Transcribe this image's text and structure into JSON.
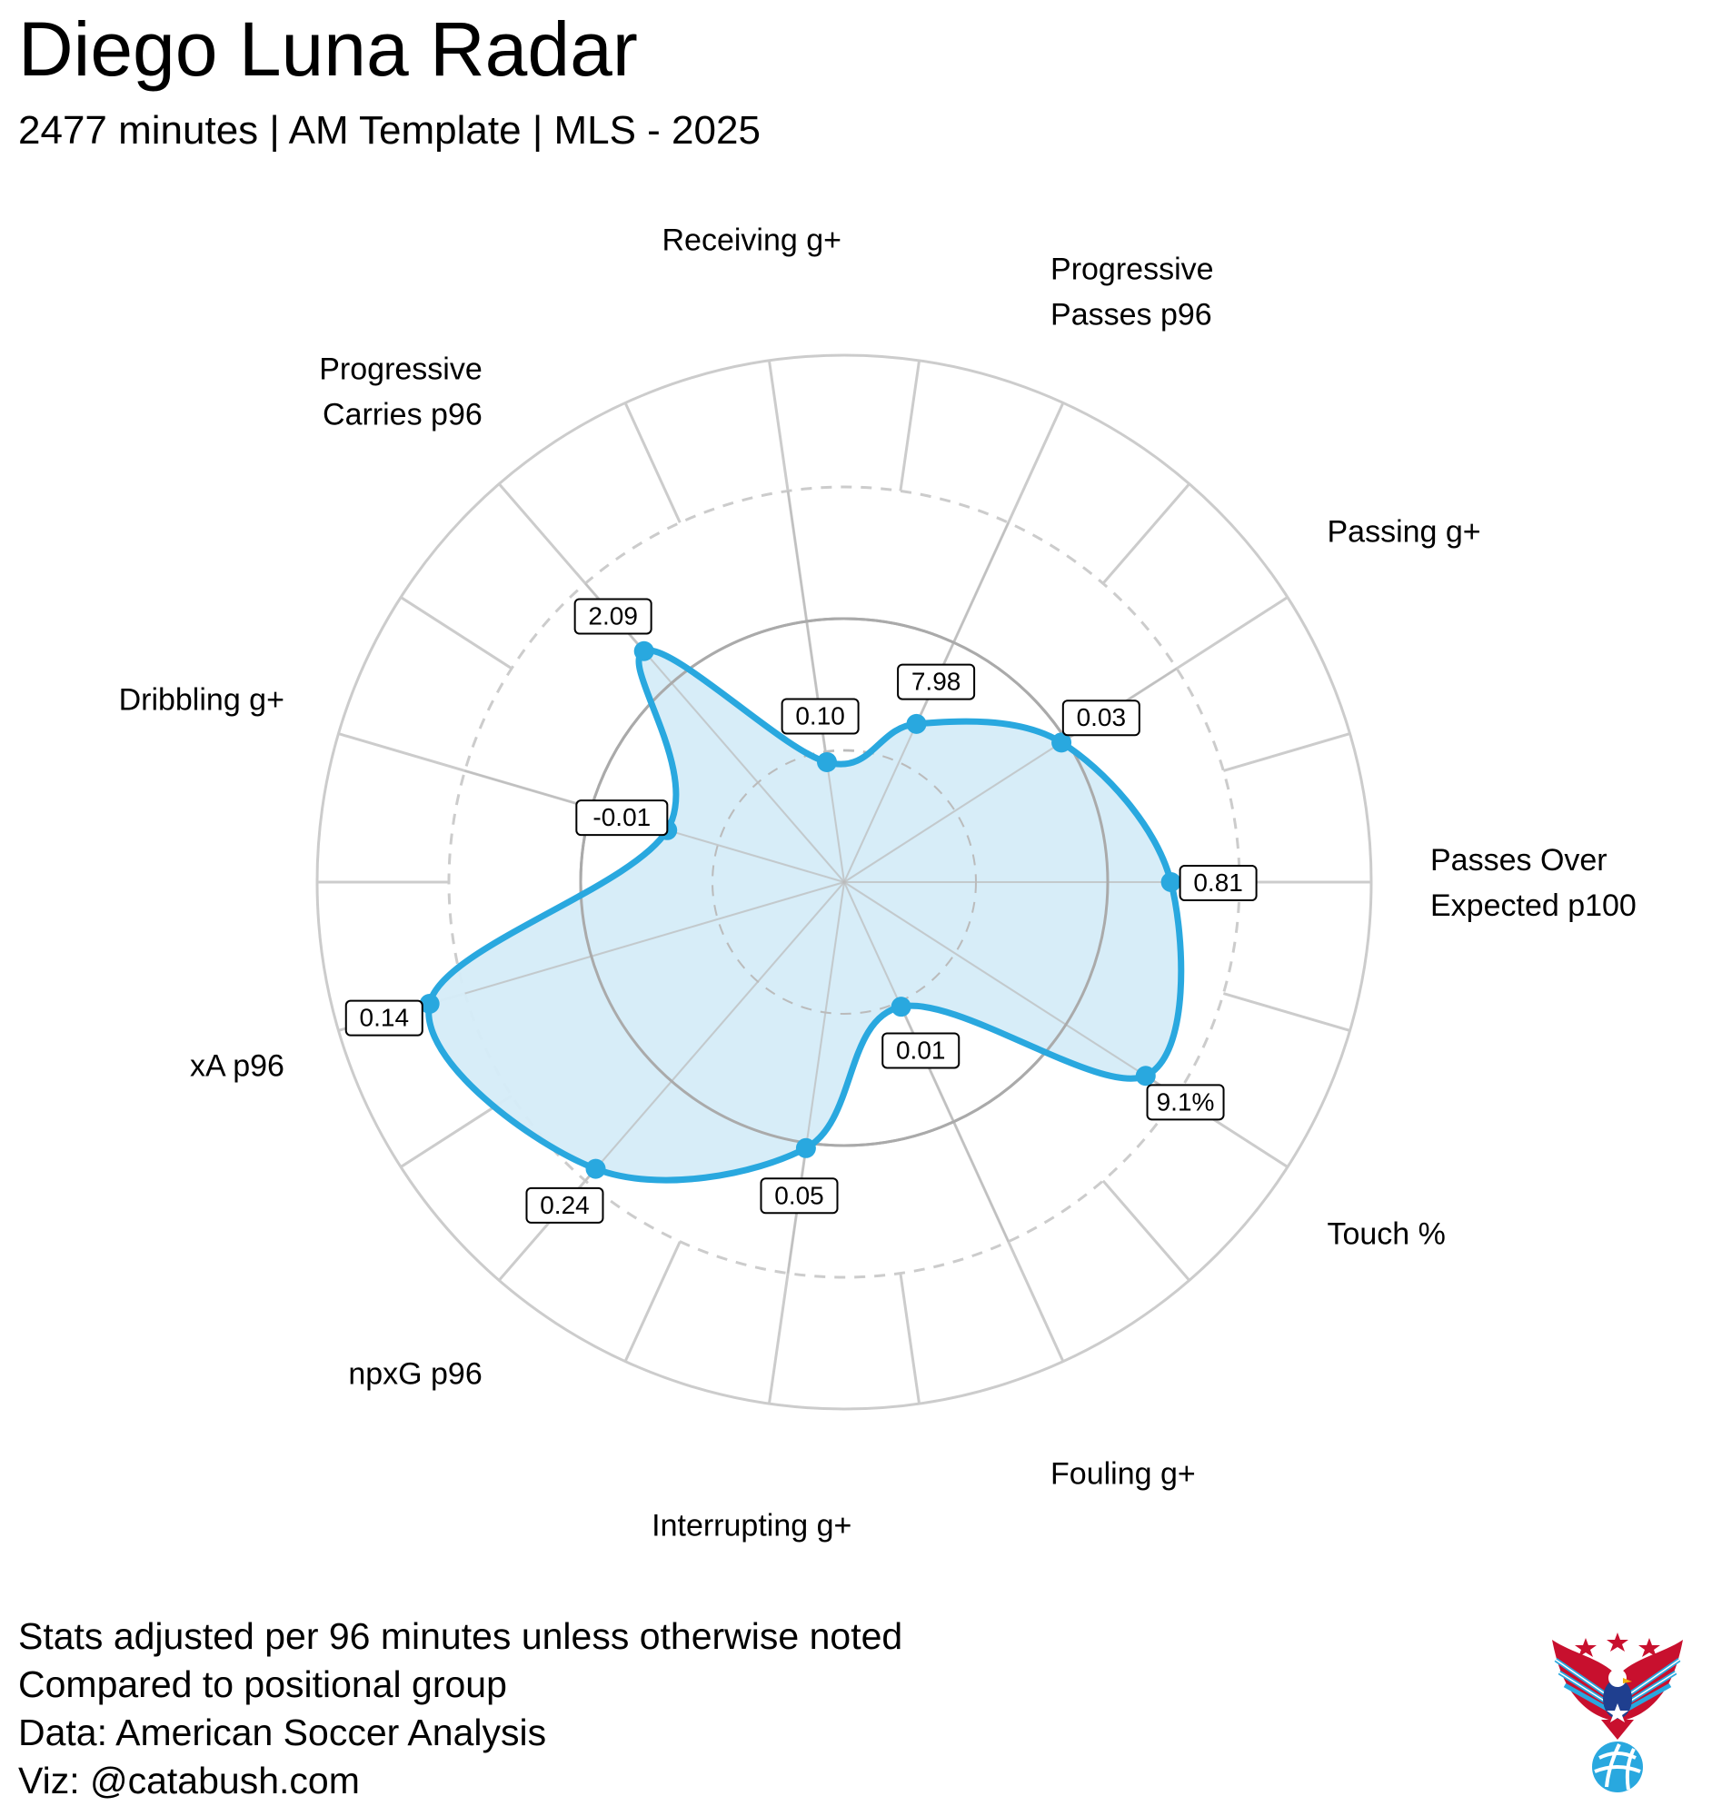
{
  "header": {
    "title": "Diego Luna Radar",
    "subtitle": "2477 minutes | AM Template | MLS - 2025"
  },
  "footnotes": [
    "Stats adjusted per 96 minutes unless otherwise noted",
    "Compared to positional group",
    "Data: American Soccer Analysis",
    "Viz: @catabush.com"
  ],
  "colors": {
    "accent": "#29a8df",
    "fill": "#d5ecf8",
    "grid": "#cccccc",
    "midline": "#aaaaaa"
  },
  "chart_data": {
    "type": "radar",
    "title": "Diego Luna Radar",
    "scale": "percentile",
    "r_range": [
      0,
      100
    ],
    "rings": [
      25,
      50,
      75,
      100
    ],
    "metrics": [
      {
        "label_lines": [
          "Passes Over",
          "Expected p100"
        ],
        "value_label": "0.81",
        "percentile": 62
      },
      {
        "label_lines": [
          "Passing g+"
        ],
        "value_label": "0.03",
        "percentile": 49
      },
      {
        "label_lines": [
          "Progressive",
          "Passes p96"
        ],
        "value_label": "7.98",
        "percentile": 33
      },
      {
        "label_lines": [
          "Receiving g+"
        ],
        "value_label": "0.10",
        "percentile": 23
      },
      {
        "label_lines": [
          "Progressive",
          "Carries p96"
        ],
        "value_label": "2.09",
        "percentile": 58
      },
      {
        "label_lines": [
          "Dribbling g+"
        ],
        "value_label": "-0.01",
        "percentile": 35
      },
      {
        "label_lines": [
          "xA p96"
        ],
        "value_label": "0.14",
        "percentile": 82
      },
      {
        "label_lines": [
          "npxG p96"
        ],
        "value_label": "0.24",
        "percentile": 72
      },
      {
        "label_lines": [
          "Interrupting g+"
        ],
        "value_label": "0.05",
        "percentile": 51
      },
      {
        "label_lines": [
          "Fouling g+"
        ],
        "value_label": "0.01",
        "percentile": 26
      },
      {
        "label_lines": [
          "Touch %"
        ],
        "value_label": "9.1%",
        "percentile": 68
      }
    ]
  }
}
